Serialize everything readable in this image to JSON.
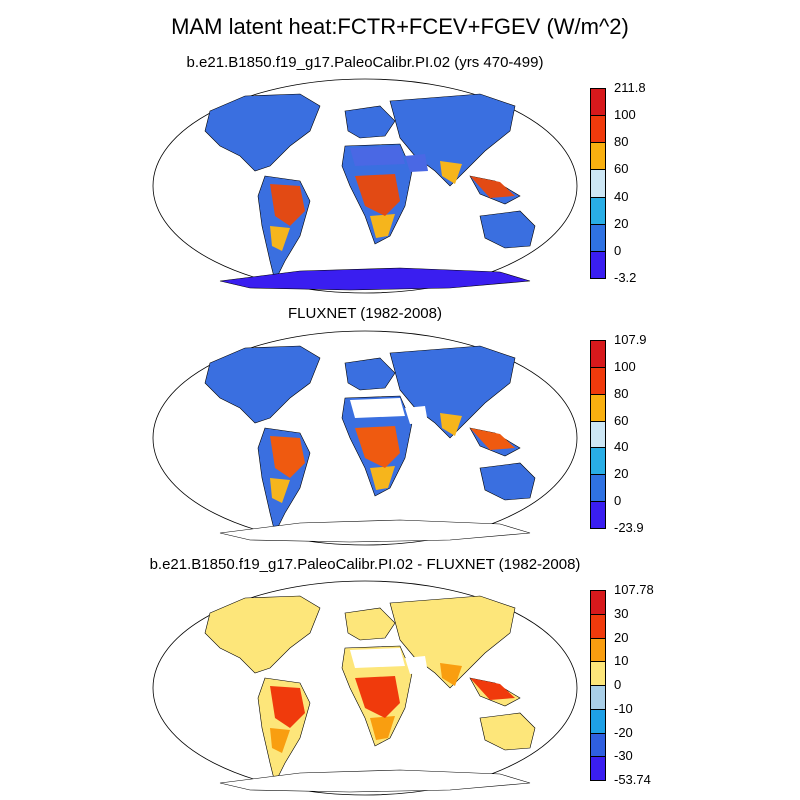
{
  "title": "MAM latent heat:FCTR+FCEV+FGEV (W/m^2)",
  "panels": [
    {
      "subtitle": "b.e21.B1850.f19_g17.PaleoCalibr.PI.02 (yrs 470-499)",
      "colorbar": {
        "labels": [
          "211.8",
          "100",
          "80",
          "60",
          "40",
          "20",
          "0",
          "-3.2"
        ],
        "colors": [
          "#d7191c",
          "#f03a0c",
          "#f9b010",
          "#cde7f5",
          "#29aee6",
          "#2f72e3",
          "#3a1ef0"
        ]
      },
      "fills": {
        "land": "#3a6fe0",
        "tropics": "#e24a14",
        "subtropics": "#f6b51c",
        "desert": "#4a68e4",
        "ice": "#3a1ef0"
      }
    },
    {
      "subtitle": "FLUXNET (1982-2008)",
      "colorbar": {
        "labels": [
          "107.9",
          "100",
          "80",
          "60",
          "40",
          "20",
          "0",
          "-23.9"
        ],
        "colors": [
          "#d7191c",
          "#f03a0c",
          "#f9b010",
          "#cde7f5",
          "#29aee6",
          "#2f72e3",
          "#3a1ef0"
        ]
      },
      "fills": {
        "land": "#3a6fe0",
        "tropics": "#ef5a10",
        "subtropics": "#f6b51c",
        "desert": "#ffffff",
        "ice": "#ffffff"
      }
    },
    {
      "subtitle": "b.e21.B1850.f19_g17.PaleoCalibr.PI.02 - FLUXNET (1982-2008)",
      "colorbar": {
        "labels": [
          "107.78",
          "30",
          "20",
          "10",
          "0",
          "-10",
          "-20",
          "-30",
          "-53.74"
        ],
        "colors": [
          "#d7191c",
          "#f03a0c",
          "#f99e10",
          "#fde67a",
          "#a9cfe8",
          "#1ea0e6",
          "#2f5fe0",
          "#3a1ef0"
        ]
      },
      "fills": {
        "land": "#fde67a",
        "tropics": "#f03a0c",
        "subtropics": "#f99e10",
        "desert": "#ffffff",
        "ice": "#ffffff"
      }
    }
  ]
}
